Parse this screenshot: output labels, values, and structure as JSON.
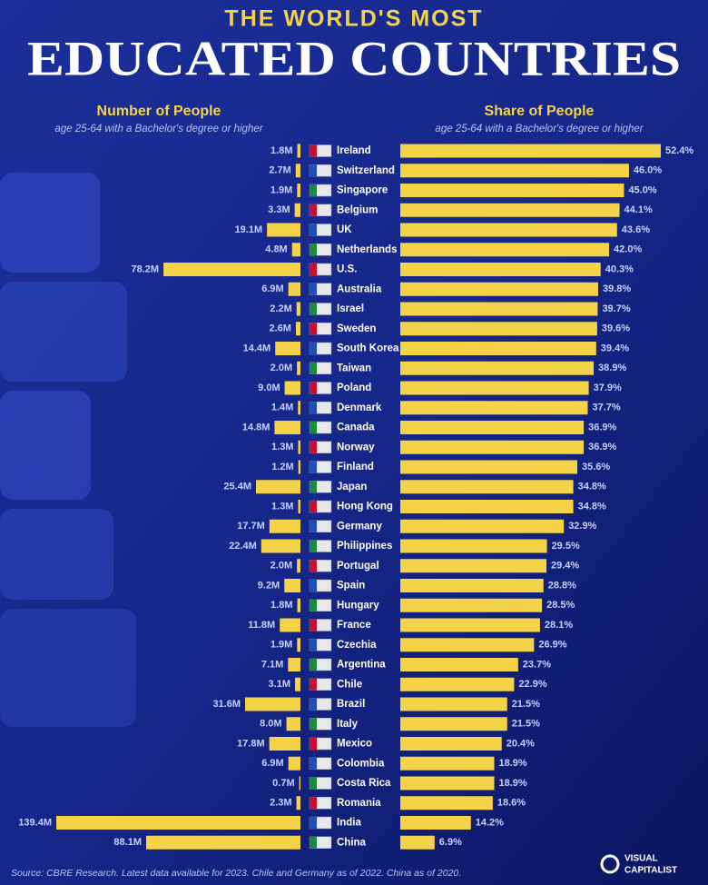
{
  "chart_data": {
    "type": "bar",
    "supertitle": "THE WORLD'S MOST",
    "title": "EDUCATED COUNTRIES",
    "categories": [
      "Ireland",
      "Switzerland",
      "Singapore",
      "Belgium",
      "UK",
      "Netherlands",
      "U.S.",
      "Australia",
      "Israel",
      "Sweden",
      "South Korea",
      "Taiwan",
      "Poland",
      "Denmark",
      "Canada",
      "Norway",
      "Finland",
      "Japan",
      "Hong Kong",
      "Germany",
      "Philippines",
      "Portugal",
      "Spain",
      "Hungary",
      "France",
      "Czechia",
      "Argentina",
      "Chile",
      "Brazil",
      "Italy",
      "Mexico",
      "Colombia",
      "Costa Rica",
      "Romania",
      "India",
      "China"
    ],
    "series": [
      {
        "name": "Number of People",
        "subtitle": "age 25-64 with a Bachelor's degree or higher",
        "color": "#f4d348",
        "values": [
          1.8,
          2.7,
          1.9,
          3.3,
          19.1,
          4.8,
          78.2,
          6.9,
          2.2,
          2.6,
          14.4,
          2.0,
          9.0,
          1.4,
          14.8,
          1.3,
          1.2,
          25.4,
          1.3,
          17.7,
          22.4,
          2.0,
          9.2,
          1.8,
          11.8,
          1.9,
          7.1,
          3.1,
          31.6,
          8.0,
          17.8,
          6.9,
          0.7,
          2.3,
          139.4,
          88.1
        ],
        "value_labels": [
          "1.8M",
          "2.7M",
          "1.9M",
          "3.3M",
          "19.1M",
          "4.8M",
          "78.2M",
          "6.9M",
          "2.2M",
          "2.6M",
          "14.4M",
          "2.0M",
          "9.0M",
          "1.4M",
          "14.8M",
          "1.3M",
          "1.2M",
          "25.4M",
          "1.3M",
          "17.7M",
          "22.4M",
          "2.0M",
          "9.2M",
          "1.8M",
          "11.8M",
          "1.9M",
          "7.1M",
          "3.1M",
          "31.6M",
          "8.0M",
          "17.8M",
          "6.9M",
          "0.7M",
          "2.3M",
          "139.4M",
          "88.1M"
        ]
      },
      {
        "name": "Share of People",
        "subtitle": "age 25-64 with a Bachelor's degree or higher",
        "color": "#f4d348",
        "values": [
          52.4,
          46.0,
          45.0,
          44.1,
          43.6,
          42.0,
          40.3,
          39.8,
          39.7,
          39.6,
          39.4,
          38.9,
          37.9,
          37.7,
          36.9,
          36.9,
          35.6,
          34.8,
          34.8,
          32.9,
          29.5,
          29.4,
          28.8,
          28.5,
          28.1,
          26.9,
          23.7,
          22.9,
          21.5,
          21.5,
          20.4,
          18.9,
          18.9,
          18.6,
          14.2,
          6.9
        ],
        "value_labels": [
          "52.4%",
          "46.0%",
          "45.0%",
          "44.1%",
          "43.6%",
          "42.0%",
          "40.3%",
          "39.8%",
          "39.7%",
          "39.6%",
          "39.4%",
          "38.9%",
          "37.9%",
          "37.7%",
          "36.9%",
          "36.9%",
          "35.6%",
          "34.8%",
          "34.8%",
          "32.9%",
          "29.5%",
          "29.4%",
          "28.8%",
          "28.5%",
          "28.1%",
          "26.9%",
          "23.7%",
          "22.9%",
          "21.5%",
          "21.5%",
          "20.4%",
          "18.9%",
          "18.9%",
          "18.6%",
          "14.2%",
          "6.9%"
        ]
      }
    ],
    "source": "Source: CBRE Research. Latest data available for 2023. Chile and Germany as of 2022. China as of 2020.",
    "logo": [
      "VISUAL",
      "CAPITALIST"
    ]
  }
}
